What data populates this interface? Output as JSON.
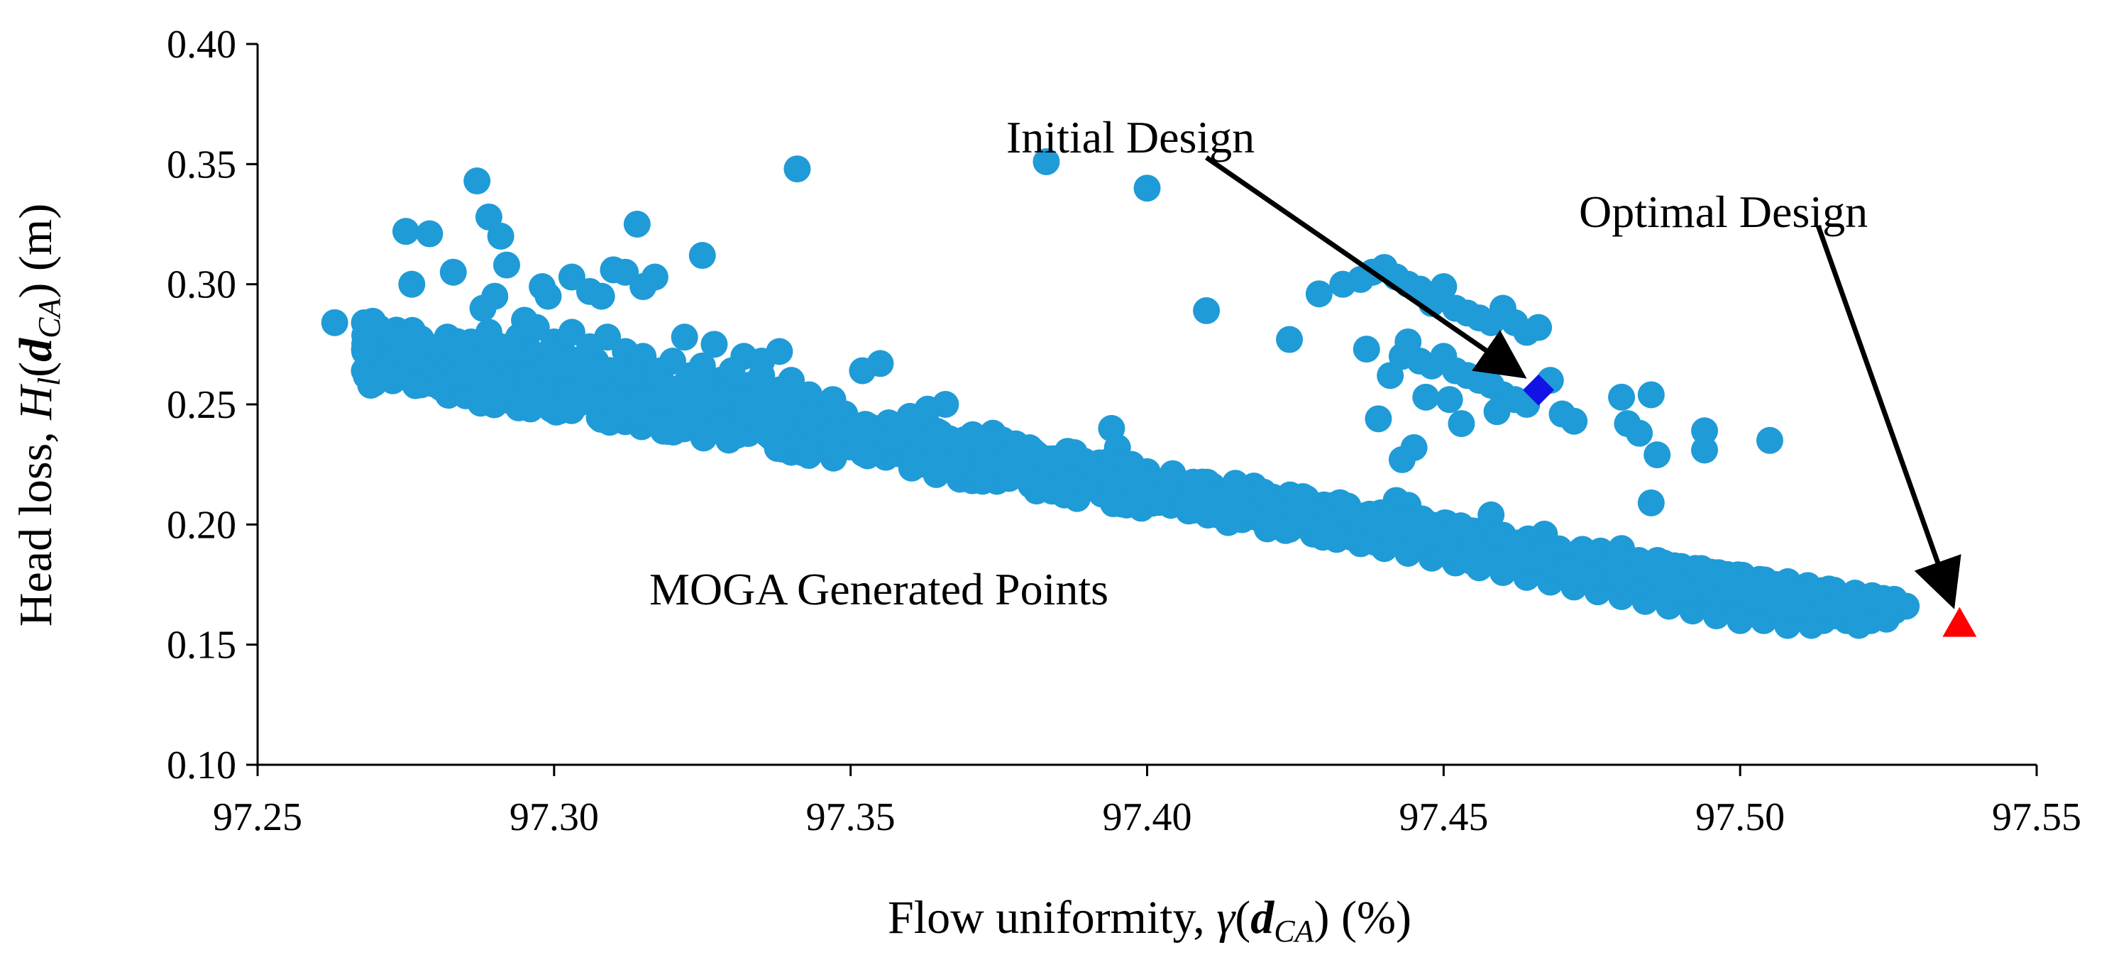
{
  "chart_data": {
    "type": "scatter",
    "title": "",
    "xlabel_parts": {
      "prefix": "Flow uniformity, ",
      "sym": "γ",
      "open": "(",
      "bold": "d",
      "sub": "CA",
      "close": ")",
      "unit": " (%)"
    },
    "ylabel_parts": {
      "prefix": "Head loss, ",
      "sym": "H",
      "symsub": "l",
      "open": "(",
      "bold": "d",
      "sub": "CA",
      "close": ")",
      "unit": " (m)"
    },
    "xlim": [
      97.25,
      97.55
    ],
    "ylim": [
      0.1,
      0.4
    ],
    "xticks": [
      "97.25",
      "97.30",
      "97.35",
      "97.40",
      "97.45",
      "97.50",
      "97.55"
    ],
    "yticks": [
      "0.10",
      "0.15",
      "0.20",
      "0.25",
      "0.30",
      "0.35",
      "0.40"
    ],
    "colors": {
      "moga": "#1f9bd7",
      "initial": "#1212e6",
      "optimal": "#ff0000",
      "axis": "#000000"
    },
    "annotations": {
      "initial_label": "Initial Design",
      "optimal_label": "Optimal Design",
      "moga_label": "MOGA Generated Points"
    },
    "initial_design": {
      "x": 97.466,
      "y": 0.256
    },
    "optimal_design": {
      "x": 97.537,
      "y": 0.158
    },
    "series": [
      {
        "name": "MOGA Generated Points",
        "points": [
          [
            97.263,
            0.284
          ],
          [
            97.268,
            0.264
          ],
          [
            97.27,
            0.278
          ],
          [
            97.271,
            0.268
          ],
          [
            97.272,
            0.262
          ],
          [
            97.273,
            0.272
          ],
          [
            97.274,
            0.266
          ],
          [
            97.275,
            0.276
          ],
          [
            97.276,
            0.26
          ],
          [
            97.277,
            0.27
          ],
          [
            97.278,
            0.264
          ],
          [
            97.279,
            0.274
          ],
          [
            97.28,
            0.268
          ],
          [
            97.281,
            0.258
          ],
          [
            97.282,
            0.278
          ],
          [
            97.283,
            0.262
          ],
          [
            97.284,
            0.272
          ],
          [
            97.285,
            0.266
          ],
          [
            97.286,
            0.276
          ],
          [
            97.287,
            0.26
          ],
          [
            97.288,
            0.27
          ],
          [
            97.289,
            0.28
          ],
          [
            97.29,
            0.264
          ],
          [
            97.291,
            0.274
          ],
          [
            97.292,
            0.268
          ],
          [
            97.293,
            0.258
          ],
          [
            97.294,
            0.278
          ],
          [
            97.295,
            0.262
          ],
          [
            97.296,
            0.272
          ],
          [
            97.297,
            0.282
          ],
          [
            97.298,
            0.266
          ],
          [
            97.299,
            0.256
          ],
          [
            97.3,
            0.276
          ],
          [
            97.301,
            0.26
          ],
          [
            97.302,
            0.27
          ],
          [
            97.303,
            0.28
          ],
          [
            97.304,
            0.264
          ],
          [
            97.305,
            0.254
          ],
          [
            97.306,
            0.274
          ],
          [
            97.307,
            0.268
          ],
          [
            97.308,
            0.258
          ],
          [
            97.309,
            0.278
          ],
          [
            97.31,
            0.262
          ],
          [
            97.311,
            0.252
          ],
          [
            97.312,
            0.272
          ],
          [
            97.313,
            0.266
          ],
          [
            97.314,
            0.256
          ],
          [
            97.315,
            0.27
          ],
          [
            97.316,
            0.25
          ],
          [
            97.317,
            0.26
          ],
          [
            97.318,
            0.264
          ],
          [
            97.319,
            0.254
          ],
          [
            97.32,
            0.268
          ],
          [
            97.321,
            0.248
          ],
          [
            97.322,
            0.258
          ],
          [
            97.323,
            0.262
          ],
          [
            97.324,
            0.252
          ],
          [
            97.325,
            0.266
          ],
          [
            97.326,
            0.246
          ],
          [
            97.327,
            0.256
          ],
          [
            97.328,
            0.26
          ],
          [
            97.329,
            0.25
          ],
          [
            97.33,
            0.264
          ],
          [
            97.331,
            0.244
          ],
          [
            97.332,
            0.254
          ],
          [
            97.333,
            0.258
          ],
          [
            97.334,
            0.248
          ],
          [
            97.335,
            0.262
          ],
          [
            97.336,
            0.242
          ],
          [
            97.337,
            0.252
          ],
          [
            97.338,
            0.256
          ],
          [
            97.339,
            0.246
          ],
          [
            97.34,
            0.26
          ],
          [
            97.341,
            0.24
          ],
          [
            97.342,
            0.25
          ],
          [
            97.343,
            0.254
          ],
          [
            97.344,
            0.244
          ],
          [
            97.345,
            0.238
          ],
          [
            97.346,
            0.248
          ],
          [
            97.347,
            0.252
          ],
          [
            97.348,
            0.236
          ],
          [
            97.349,
            0.246
          ],
          [
            97.35,
            0.242
          ],
          [
            97.352,
            0.234
          ],
          [
            97.354,
            0.24
          ],
          [
            97.356,
            0.232
          ],
          [
            97.358,
            0.238
          ],
          [
            97.36,
            0.23
          ],
          [
            97.362,
            0.236
          ],
          [
            97.364,
            0.228
          ],
          [
            97.366,
            0.234
          ],
          [
            97.368,
            0.226
          ],
          [
            97.37,
            0.232
          ],
          [
            97.372,
            0.224
          ],
          [
            97.374,
            0.23
          ],
          [
            97.376,
            0.222
          ],
          [
            97.378,
            0.228
          ],
          [
            97.38,
            0.22
          ],
          [
            97.382,
            0.226
          ],
          [
            97.384,
            0.218
          ],
          [
            97.386,
            0.224
          ],
          [
            97.388,
            0.216
          ],
          [
            97.39,
            0.222
          ],
          [
            97.392,
            0.214
          ],
          [
            97.394,
            0.22
          ],
          [
            97.396,
            0.212
          ],
          [
            97.398,
            0.218
          ],
          [
            97.4,
            0.21
          ],
          [
            97.402,
            0.216
          ],
          [
            97.404,
            0.208
          ],
          [
            97.406,
            0.214
          ],
          [
            97.408,
            0.206
          ],
          [
            97.41,
            0.212
          ],
          [
            97.412,
            0.204
          ],
          [
            97.414,
            0.21
          ],
          [
            97.416,
            0.202
          ],
          [
            97.418,
            0.208
          ],
          [
            97.42,
            0.2
          ],
          [
            97.422,
            0.206
          ],
          [
            97.424,
            0.198
          ],
          [
            97.426,
            0.204
          ],
          [
            97.428,
            0.196
          ],
          [
            97.43,
            0.202
          ],
          [
            97.432,
            0.194
          ],
          [
            97.434,
            0.2
          ],
          [
            97.436,
            0.192
          ],
          [
            97.438,
            0.198
          ],
          [
            97.44,
            0.19
          ],
          [
            97.442,
            0.196
          ],
          [
            97.444,
            0.188
          ],
          [
            97.446,
            0.194
          ],
          [
            97.448,
            0.186
          ],
          [
            97.45,
            0.192
          ],
          [
            97.452,
            0.184
          ],
          [
            97.454,
            0.19
          ],
          [
            97.456,
            0.182
          ],
          [
            97.458,
            0.188
          ],
          [
            97.46,
            0.18
          ],
          [
            97.462,
            0.186
          ],
          [
            97.464,
            0.178
          ],
          [
            97.466,
            0.184
          ],
          [
            97.468,
            0.176
          ],
          [
            97.47,
            0.182
          ],
          [
            97.472,
            0.174
          ],
          [
            97.474,
            0.18
          ],
          [
            97.476,
            0.172
          ],
          [
            97.478,
            0.178
          ],
          [
            97.48,
            0.17
          ],
          [
            97.482,
            0.176
          ],
          [
            97.484,
            0.168
          ],
          [
            97.486,
            0.174
          ],
          [
            97.488,
            0.166
          ],
          [
            97.49,
            0.172
          ],
          [
            97.492,
            0.164
          ],
          [
            97.494,
            0.17
          ],
          [
            97.496,
            0.162
          ],
          [
            97.498,
            0.168
          ],
          [
            97.5,
            0.16
          ],
          [
            97.502,
            0.166
          ],
          [
            97.504,
            0.16
          ],
          [
            97.506,
            0.164
          ],
          [
            97.508,
            0.158
          ],
          [
            97.51,
            0.162
          ],
          [
            97.512,
            0.158
          ],
          [
            97.514,
            0.16
          ],
          [
            97.516,
            0.162
          ],
          [
            97.518,
            0.16
          ],
          [
            97.52,
            0.158
          ],
          [
            97.522,
            0.16
          ],
          [
            97.524,
            0.162
          ],
          [
            97.526,
            0.164
          ],
          [
            97.528,
            0.166
          ],
          [
            97.275,
            0.322
          ],
          [
            97.276,
            0.3
          ],
          [
            97.279,
            0.321
          ],
          [
            97.283,
            0.305
          ],
          [
            97.287,
            0.343
          ],
          [
            97.289,
            0.328
          ],
          [
            97.291,
            0.32
          ],
          [
            97.292,
            0.308
          ],
          [
            97.288,
            0.29
          ],
          [
            97.29,
            0.295
          ],
          [
            97.295,
            0.285
          ],
          [
            97.298,
            0.299
          ],
          [
            97.299,
            0.295
          ],
          [
            97.303,
            0.303
          ],
          [
            97.306,
            0.297
          ],
          [
            97.308,
            0.295
          ],
          [
            97.31,
            0.306
          ],
          [
            97.312,
            0.305
          ],
          [
            97.314,
            0.325
          ],
          [
            97.315,
            0.299
          ],
          [
            97.317,
            0.303
          ],
          [
            97.322,
            0.278
          ],
          [
            97.325,
            0.312
          ],
          [
            97.327,
            0.275
          ],
          [
            97.332,
            0.27
          ],
          [
            97.335,
            0.268
          ],
          [
            97.338,
            0.272
          ],
          [
            97.341,
            0.348
          ],
          [
            97.352,
            0.264
          ],
          [
            97.355,
            0.267
          ],
          [
            97.36,
            0.245
          ],
          [
            97.363,
            0.248
          ],
          [
            97.366,
            0.25
          ],
          [
            97.374,
            0.238
          ],
          [
            97.376,
            0.232
          ],
          [
            97.383,
            0.351
          ],
          [
            97.394,
            0.24
          ],
          [
            97.395,
            0.232
          ],
          [
            97.4,
            0.34
          ],
          [
            97.4,
            0.222
          ],
          [
            97.41,
            0.289
          ],
          [
            97.411,
            0.216
          ],
          [
            97.418,
            0.216
          ],
          [
            97.424,
            0.277
          ],
          [
            97.429,
            0.296
          ],
          [
            97.433,
            0.3
          ],
          [
            97.436,
            0.302
          ],
          [
            97.438,
            0.305
          ],
          [
            97.44,
            0.307
          ],
          [
            97.442,
            0.303
          ],
          [
            97.444,
            0.3
          ],
          [
            97.446,
            0.298
          ],
          [
            97.448,
            0.292
          ],
          [
            97.45,
            0.299
          ],
          [
            97.452,
            0.29
          ],
          [
            97.454,
            0.288
          ],
          [
            97.456,
            0.286
          ],
          [
            97.458,
            0.284
          ],
          [
            97.46,
            0.29
          ],
          [
            97.462,
            0.284
          ],
          [
            97.464,
            0.28
          ],
          [
            97.466,
            0.282
          ],
          [
            97.468,
            0.26
          ],
          [
            97.437,
            0.273
          ],
          [
            97.439,
            0.244
          ],
          [
            97.441,
            0.262
          ],
          [
            97.443,
            0.27
          ],
          [
            97.444,
            0.276
          ],
          [
            97.446,
            0.268
          ],
          [
            97.448,
            0.266
          ],
          [
            97.45,
            0.27
          ],
          [
            97.452,
            0.264
          ],
          [
            97.454,
            0.262
          ],
          [
            97.456,
            0.26
          ],
          [
            97.458,
            0.258
          ],
          [
            97.46,
            0.254
          ],
          [
            97.462,
            0.252
          ],
          [
            97.464,
            0.25
          ],
          [
            97.445,
            0.232
          ],
          [
            97.443,
            0.227
          ],
          [
            97.447,
            0.253
          ],
          [
            97.451,
            0.252
          ],
          [
            97.453,
            0.242
          ],
          [
            97.459,
            0.247
          ],
          [
            97.442,
            0.21
          ],
          [
            97.444,
            0.208
          ],
          [
            97.458,
            0.204
          ],
          [
            97.47,
            0.246
          ],
          [
            97.472,
            0.243
          ],
          [
            97.48,
            0.253
          ],
          [
            97.481,
            0.242
          ],
          [
            97.483,
            0.238
          ],
          [
            97.485,
            0.254
          ],
          [
            97.486,
            0.229
          ],
          [
            97.485,
            0.209
          ],
          [
            97.494,
            0.239
          ],
          [
            97.494,
            0.231
          ],
          [
            97.505,
            0.235
          ],
          [
            97.467,
            0.196
          ],
          [
            97.475,
            0.186
          ],
          [
            97.48,
            0.19
          ],
          [
            97.465,
            0.185
          ],
          [
            97.489,
            0.178
          ]
        ]
      }
    ]
  }
}
